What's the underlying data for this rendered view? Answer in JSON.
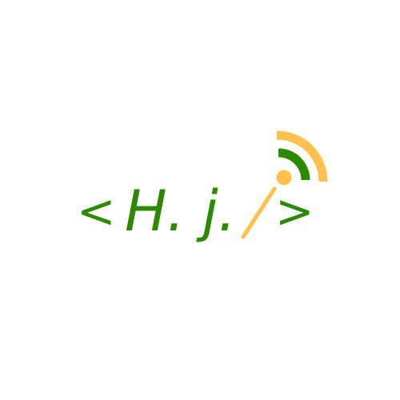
{
  "logo": {
    "open_bracket": "<",
    "name": "H. j.",
    "close_bracket": ">",
    "icon": "wifi-signal-icon",
    "colors": {
      "primary_green": "#2b8a00",
      "accent_orange": "#ffc04d",
      "background": "#ffffff"
    }
  }
}
